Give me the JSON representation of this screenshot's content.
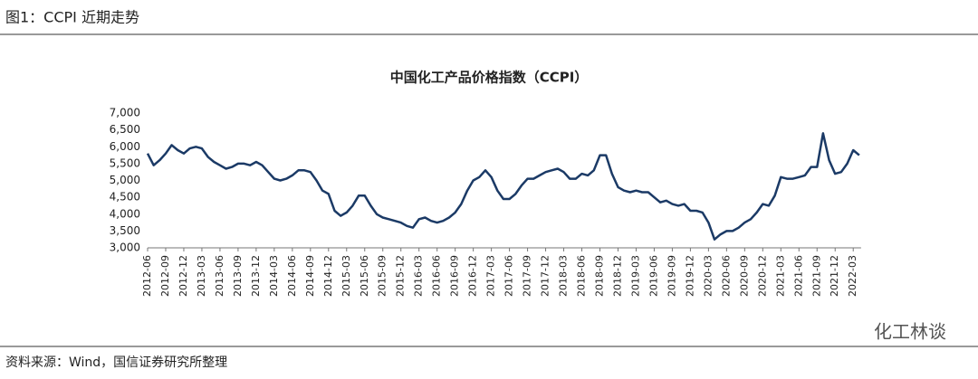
{
  "header": {
    "title": "图1：CCPI 近期走势"
  },
  "chart_data": {
    "type": "line",
    "title": "中国化工产品价格指数（CCPI）",
    "color": "#1b3a66",
    "categories": [
      "2012-06",
      null,
      null,
      "2012-09",
      null,
      null,
      "2012-12",
      null,
      null,
      "2013-03",
      null,
      null,
      "2013-06",
      null,
      null,
      "2013-09",
      null,
      null,
      "2013-12",
      null,
      null,
      "2014-03",
      null,
      null,
      "2014-06",
      null,
      null,
      "2014-09",
      null,
      null,
      "2014-12",
      null,
      null,
      "2015-03",
      null,
      null,
      "2015-06",
      null,
      null,
      "2015-09",
      null,
      null,
      "2015-12",
      null,
      null,
      "2016-03",
      null,
      null,
      "2016-06",
      null,
      null,
      "2016-09",
      null,
      null,
      "2016-12",
      null,
      null,
      "2017-03",
      null,
      null,
      "2017-06",
      null,
      null,
      "2017-09",
      null,
      null,
      "2017-12",
      null,
      null,
      "2018-03",
      null,
      null,
      "2018-06",
      null,
      null,
      "2018-09",
      null,
      null,
      "2018-12",
      null,
      null,
      "2019-03",
      null,
      null,
      "2019-06",
      null,
      null,
      "2019-09",
      null,
      null,
      "2019-12",
      null,
      null,
      "2020-03",
      null,
      null,
      "2020-06",
      null,
      null,
      "2020-09",
      null,
      null,
      "2020-12",
      null,
      null,
      "2021-03",
      null,
      null,
      "2021-06",
      null,
      null,
      "2021-09",
      null,
      null,
      "2021-12",
      null,
      null,
      "2022-03",
      null
    ],
    "values": [
      5800,
      5450,
      5600,
      5800,
      6050,
      5900,
      5800,
      5950,
      6000,
      5950,
      5700,
      5550,
      5450,
      5350,
      5400,
      5500,
      5500,
      5450,
      5550,
      5450,
      5250,
      5050,
      5000,
      5050,
      5150,
      5300,
      5300,
      5250,
      5000,
      4700,
      4600,
      4100,
      3950,
      4050,
      4250,
      4550,
      4550,
      4250,
      4000,
      3900,
      3850,
      3800,
      3750,
      3650,
      3600,
      3850,
      3900,
      3800,
      3750,
      3800,
      3900,
      4050,
      4300,
      4700,
      5000,
      5100,
      5300,
      5100,
      4700,
      4450,
      4450,
      4600,
      4850,
      5050,
      5050,
      5150,
      5250,
      5300,
      5350,
      5250,
      5050,
      5050,
      5200,
      5150,
      5300,
      5750,
      5750,
      5200,
      4800,
      4700,
      4650,
      4700,
      4650,
      4650,
      4500,
      4350,
      4400,
      4300,
      4250,
      4300,
      4100,
      4100,
      4050,
      3750,
      3250,
      3400,
      3500,
      3500,
      3600,
      3750,
      3850,
      4050,
      4300,
      4250,
      4550,
      5100,
      5050,
      5050,
      5100,
      5150,
      5400,
      5400,
      6400,
      5600,
      5200,
      5250,
      5500,
      5900,
      5750
    ],
    "ylim": [
      3000,
      7000
    ],
    "yticks": [
      {
        "value": 3000,
        "label": "3,000"
      },
      {
        "value": 3500,
        "label": "3,500"
      },
      {
        "value": 4000,
        "label": "4,000"
      },
      {
        "value": 4500,
        "label": "4,500"
      },
      {
        "value": 5000,
        "label": "5,000"
      },
      {
        "value": 5500,
        "label": "5,500"
      },
      {
        "value": 6000,
        "label": "6,000"
      },
      {
        "value": 6500,
        "label": "6,500"
      },
      {
        "value": 7000,
        "label": "7,000"
      }
    ]
  },
  "footer": {
    "source": "资料来源：Wind，国信证券研究所整理",
    "watermark": "化工林谈"
  }
}
